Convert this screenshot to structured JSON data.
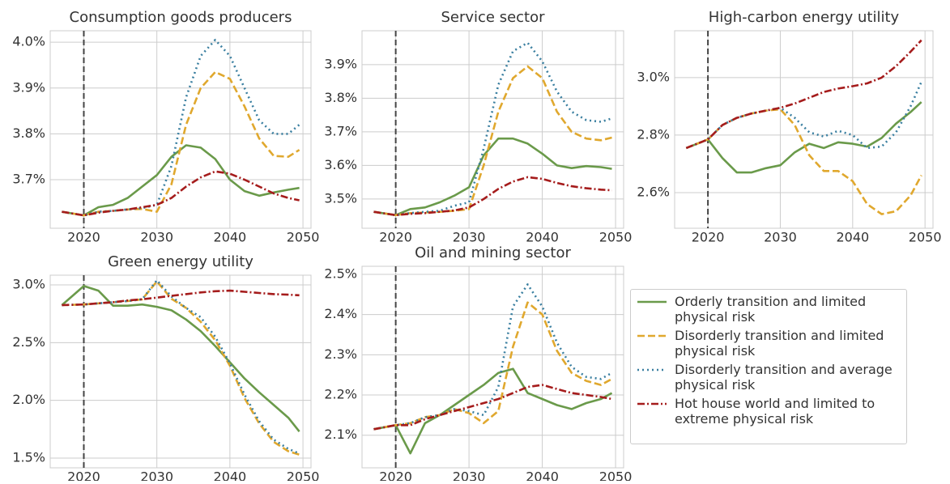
{
  "chart_data": [
    {
      "type": "line",
      "title": "Consumption goods producers",
      "x": [
        2017,
        2020,
        2022,
        2024,
        2026,
        2028,
        2030,
        2032,
        2034,
        2036,
        2038,
        2040,
        2042,
        2044,
        2046,
        2048,
        2049.5
      ],
      "xlim": [
        2015.4,
        2051.1
      ],
      "xticks": [
        2020,
        2030,
        2040,
        2050
      ],
      "ylim": [
        3.594,
        4.025
      ],
      "yticks": [
        {
          "value": 3.7,
          "label": "3.7%"
        },
        {
          "value": 3.8,
          "label": "3.8%"
        },
        {
          "value": 3.9,
          "label": "3.9%"
        },
        {
          "value": 4.0,
          "label": "4.0%"
        }
      ],
      "vline": 2020,
      "grid": true,
      "series": [
        {
          "name": "Orderly transition and limited physical risk",
          "color": "#6a9a4a",
          "style": "solid",
          "values": [
            3.63,
            3.622,
            3.64,
            3.645,
            3.66,
            3.685,
            3.71,
            3.75,
            3.775,
            3.77,
            3.745,
            3.7,
            3.675,
            3.665,
            3.672,
            3.678,
            3.682
          ]
        },
        {
          "name": "Disorderly transition and limited physical risk",
          "color": "#e0a82e",
          "style": "dashed",
          "values": [
            3.63,
            3.622,
            3.63,
            3.632,
            3.635,
            3.636,
            3.63,
            3.69,
            3.82,
            3.9,
            3.935,
            3.92,
            3.86,
            3.79,
            3.752,
            3.75,
            3.765
          ]
        },
        {
          "name": "Disorderly transition and average physical risk",
          "color": "#3a7fa0",
          "style": "dotted",
          "values": [
            3.63,
            3.622,
            3.63,
            3.632,
            3.635,
            3.638,
            3.645,
            3.73,
            3.88,
            3.97,
            4.005,
            3.97,
            3.9,
            3.83,
            3.8,
            3.8,
            3.82
          ]
        },
        {
          "name": "Hot house world and limited to extreme physical risk",
          "color": "#a51c1c",
          "style": "dashdot",
          "values": [
            3.63,
            3.622,
            3.628,
            3.632,
            3.635,
            3.64,
            3.645,
            3.66,
            3.685,
            3.705,
            3.718,
            3.713,
            3.7,
            3.685,
            3.67,
            3.66,
            3.655
          ]
        }
      ]
    },
    {
      "type": "line",
      "title": "Service sector",
      "x": [
        2017,
        2020,
        2022,
        2024,
        2026,
        2028,
        2030,
        2032,
        2034,
        2036,
        2038,
        2040,
        2042,
        2044,
        2046,
        2048,
        2049.5
      ],
      "xlim": [
        2015.4,
        2051.1
      ],
      "xticks": [
        2020,
        2030,
        2040,
        2050
      ],
      "ylim": [
        3.413,
        4.001
      ],
      "yticks": [
        {
          "value": 3.5,
          "label": "3.5%"
        },
        {
          "value": 3.6,
          "label": "3.6%"
        },
        {
          "value": 3.7,
          "label": "3.7%"
        },
        {
          "value": 3.8,
          "label": "3.8%"
        },
        {
          "value": 3.9,
          "label": "3.9%"
        }
      ],
      "vline": 2020,
      "grid": true,
      "series": [
        {
          "color": "#6a9a4a",
          "style": "solid",
          "values": [
            3.462,
            3.452,
            3.47,
            3.475,
            3.49,
            3.51,
            3.535,
            3.63,
            3.68,
            3.68,
            3.665,
            3.635,
            3.6,
            3.592,
            3.598,
            3.595,
            3.59
          ]
        },
        {
          "color": "#e0a82e",
          "style": "dashed",
          "values": [
            3.462,
            3.452,
            3.458,
            3.46,
            3.462,
            3.465,
            3.47,
            3.6,
            3.76,
            3.86,
            3.895,
            3.86,
            3.76,
            3.7,
            3.68,
            3.675,
            3.683
          ]
        },
        {
          "color": "#3a7fa0",
          "style": "dotted",
          "values": [
            3.462,
            3.452,
            3.458,
            3.462,
            3.465,
            3.48,
            3.49,
            3.65,
            3.84,
            3.94,
            3.965,
            3.91,
            3.82,
            3.76,
            3.735,
            3.73,
            3.74
          ]
        },
        {
          "color": "#a51c1c",
          "style": "dashdot",
          "values": [
            3.462,
            3.452,
            3.456,
            3.458,
            3.462,
            3.466,
            3.475,
            3.5,
            3.53,
            3.552,
            3.565,
            3.56,
            3.548,
            3.538,
            3.532,
            3.528,
            3.526
          ]
        }
      ]
    },
    {
      "type": "line",
      "title": "High-carbon energy utility",
      "x": [
        2017,
        2020,
        2022,
        2024,
        2026,
        2028,
        2030,
        2032,
        2034,
        2036,
        2038,
        2040,
        2042,
        2044,
        2046,
        2048,
        2049.5
      ],
      "xlim": [
        2015.4,
        2051.1
      ],
      "xticks": [
        2020,
        2030,
        2040,
        2050
      ],
      "ylim": [
        2.476,
        3.163
      ],
      "yticks": [
        {
          "value": 2.6,
          "label": "2.6%"
        },
        {
          "value": 2.8,
          "label": "2.8%"
        },
        {
          "value": 3.0,
          "label": "3.0%"
        }
      ],
      "vline": 2020,
      "grid": true,
      "series": [
        {
          "color": "#6a9a4a",
          "style": "solid",
          "values": [
            2.755,
            2.785,
            2.72,
            2.67,
            2.67,
            2.685,
            2.695,
            2.74,
            2.77,
            2.755,
            2.775,
            2.77,
            2.76,
            2.79,
            2.84,
            2.88,
            2.915
          ]
        },
        {
          "color": "#e0a82e",
          "style": "dashed",
          "values": [
            2.755,
            2.785,
            2.835,
            2.86,
            2.875,
            2.885,
            2.89,
            2.835,
            2.73,
            2.675,
            2.675,
            2.64,
            2.56,
            2.525,
            2.535,
            2.59,
            2.66
          ]
        },
        {
          "color": "#3a7fa0",
          "style": "dotted",
          "values": [
            2.755,
            2.785,
            2.835,
            2.86,
            2.875,
            2.885,
            2.895,
            2.86,
            2.81,
            2.795,
            2.815,
            2.8,
            2.755,
            2.76,
            2.81,
            2.9,
            2.985
          ]
        },
        {
          "color": "#a51c1c",
          "style": "dashdot",
          "values": [
            2.755,
            2.785,
            2.835,
            2.86,
            2.875,
            2.885,
            2.895,
            2.91,
            2.93,
            2.95,
            2.962,
            2.97,
            2.98,
            3.0,
            3.04,
            3.09,
            3.13
          ]
        }
      ]
    },
    {
      "type": "line",
      "title": "Green energy utility",
      "x": [
        2017,
        2020,
        2022,
        2024,
        2026,
        2028,
        2030,
        2032,
        2034,
        2036,
        2038,
        2040,
        2042,
        2044,
        2046,
        2048,
        2049.5
      ],
      "xlim": [
        2015.4,
        2051.1
      ],
      "xticks": [
        2020,
        2030,
        2040,
        2050
      ],
      "ylim": [
        1.416,
        3.084
      ],
      "yticks": [
        {
          "value": 1.5,
          "label": "1.5%"
        },
        {
          "value": 2.0,
          "label": "2.0%"
        },
        {
          "value": 2.5,
          "label": "2.5%"
        },
        {
          "value": 3.0,
          "label": "3.0%"
        }
      ],
      "vline": 2020,
      "grid": true,
      "series": [
        {
          "color": "#6a9a4a",
          "style": "solid",
          "values": [
            2.825,
            2.99,
            2.95,
            2.82,
            2.82,
            2.83,
            2.81,
            2.78,
            2.7,
            2.6,
            2.47,
            2.33,
            2.19,
            2.07,
            1.96,
            1.85,
            1.73
          ]
        },
        {
          "color": "#e0a82e",
          "style": "dashed",
          "values": [
            2.825,
            2.83,
            2.84,
            2.85,
            2.86,
            2.875,
            3.03,
            2.88,
            2.8,
            2.68,
            2.52,
            2.3,
            2.02,
            1.8,
            1.64,
            1.56,
            1.53
          ]
        },
        {
          "color": "#3a7fa0",
          "style": "dotted",
          "values": [
            2.825,
            2.83,
            2.84,
            2.85,
            2.86,
            2.875,
            3.04,
            2.9,
            2.8,
            2.72,
            2.55,
            2.32,
            2.05,
            1.82,
            1.66,
            1.58,
            1.54
          ]
        },
        {
          "color": "#a51c1c",
          "style": "dashdot",
          "values": [
            2.825,
            2.83,
            2.84,
            2.85,
            2.865,
            2.875,
            2.89,
            2.905,
            2.92,
            2.935,
            2.945,
            2.95,
            2.94,
            2.93,
            2.92,
            2.915,
            2.91
          ]
        }
      ]
    },
    {
      "type": "line",
      "title": "Oil and mining sector",
      "x": [
        2017,
        2020,
        2022,
        2024,
        2026,
        2028,
        2030,
        2032,
        2034,
        2036,
        2038,
        2040,
        2042,
        2044,
        2046,
        2048,
        2049.5
      ],
      "xlim": [
        2015.4,
        2051.1
      ],
      "xticks": [
        2020,
        2030,
        2040,
        2050
      ],
      "ylim": [
        2.019,
        2.52
      ],
      "yticks": [
        {
          "value": 2.1,
          "label": "2.1%"
        },
        {
          "value": 2.2,
          "label": "2.2%"
        },
        {
          "value": 2.3,
          "label": "2.3%"
        },
        {
          "value": 2.4,
          "label": "2.4%"
        },
        {
          "value": 2.5,
          "label": "2.5%"
        }
      ],
      "vline": 2020,
      "grid": true,
      "series": [
        {
          "color": "#6a9a4a",
          "style": "solid",
          "values": [
            2.115,
            2.125,
            2.055,
            2.13,
            2.15,
            2.175,
            2.2,
            2.225,
            2.255,
            2.265,
            2.205,
            2.19,
            2.175,
            2.165,
            2.18,
            2.19,
            2.205
          ]
        },
        {
          "color": "#e0a82e",
          "style": "dashed",
          "values": [
            2.115,
            2.125,
            2.13,
            2.145,
            2.15,
            2.165,
            2.155,
            2.13,
            2.16,
            2.32,
            2.43,
            2.4,
            2.31,
            2.255,
            2.235,
            2.225,
            2.24
          ]
        },
        {
          "color": "#3a7fa0",
          "style": "dotted",
          "values": [
            2.115,
            2.125,
            2.13,
            2.145,
            2.15,
            2.165,
            2.16,
            2.15,
            2.22,
            2.42,
            2.475,
            2.42,
            2.33,
            2.27,
            2.245,
            2.24,
            2.255
          ]
        },
        {
          "color": "#a51c1c",
          "style": "dashdot",
          "values": [
            2.115,
            2.125,
            2.125,
            2.14,
            2.15,
            2.16,
            2.17,
            2.18,
            2.19,
            2.205,
            2.22,
            2.225,
            2.215,
            2.205,
            2.2,
            2.195,
            2.19
          ]
        }
      ]
    }
  ]
}
